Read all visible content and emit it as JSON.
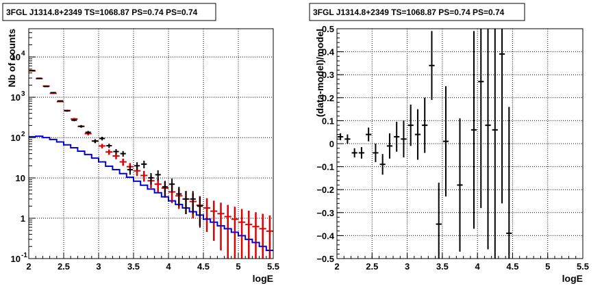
{
  "chart_data": [
    {
      "type": "histogram-errorbars",
      "title": "3FGL J1314.8+2349 TS=1068.87 PS=0.74 PS=0.74",
      "xlabel": "logE",
      "ylabel": "Nb of counts",
      "xlim": [
        2,
        5.5
      ],
      "ylim": [
        0.1,
        50000
      ],
      "yscale": "log",
      "grid": true,
      "x_ticks": [
        "2",
        "2.5",
        "3",
        "3.5",
        "4",
        "4.5",
        "5",
        "5.5"
      ],
      "y_ticks": [
        {
          "v": 0.1,
          "label": "10",
          "exp": "-1"
        },
        {
          "v": 1,
          "label": "1",
          "exp": ""
        },
        {
          "v": 10,
          "label": "10",
          "exp": ""
        },
        {
          "v": 100,
          "label": "10",
          "exp": "2"
        },
        {
          "v": 1000,
          "label": "10",
          "exp": "3"
        },
        {
          "v": 10000,
          "label": "10",
          "exp": "4"
        }
      ],
      "bin_width": 0.1,
      "series": [
        {
          "role": "total-model",
          "color": "#dd0000",
          "x": [
            2.05,
            2.15,
            2.25,
            2.35,
            2.45,
            2.55,
            2.65,
            2.75,
            2.85,
            2.95,
            3.05,
            3.15,
            3.25,
            3.35,
            3.45,
            3.55,
            3.65,
            3.75,
            3.85,
            3.95,
            4.05,
            4.15,
            4.25,
            4.35,
            4.45,
            4.55,
            4.65,
            4.75,
            4.85,
            4.95,
            5.05,
            5.15,
            5.25,
            5.35,
            5.45
          ],
          "values": [
            4500,
            2900,
            1900,
            1250,
            780,
            470,
            290,
            190,
            125,
            82,
            62,
            44,
            35,
            25,
            19,
            15,
            11.5,
            8.5,
            7,
            5.6,
            4.5,
            3.6,
            3,
            2.6,
            2.1,
            1.8,
            1.5,
            1.3,
            1.1,
            0.95,
            0.8,
            0.7,
            0.62,
            0.55,
            0.48
          ]
        },
        {
          "role": "source-model",
          "color": "#0000dd",
          "x": [
            2.05,
            2.15,
            2.25,
            2.35,
            2.45,
            2.55,
            2.65,
            2.75,
            2.85,
            2.95,
            3.05,
            3.15,
            3.25,
            3.35,
            3.45,
            3.55,
            3.65,
            3.75,
            3.85,
            3.95,
            4.05,
            4.15,
            4.25,
            4.35,
            4.45,
            4.55,
            4.65,
            4.75,
            4.85,
            4.95,
            5.05,
            5.15,
            5.25,
            5.35,
            5.45
          ],
          "values": [
            105,
            108,
            100,
            90,
            78,
            66,
            56,
            46,
            38,
            31,
            25,
            19.5,
            16,
            12.8,
            10.4,
            8.3,
            6.6,
            5.3,
            4.3,
            3.4,
            2.7,
            2.2,
            1.8,
            1.45,
            1.2,
            0.95,
            0.8,
            0.65,
            0.55,
            0.45,
            0.37,
            0.3,
            0.25,
            0.2,
            0.16
          ]
        },
        {
          "role": "data",
          "color": "#000000",
          "x": [
            2.05,
            2.15,
            2.25,
            2.35,
            2.45,
            2.55,
            2.65,
            2.75,
            2.85,
            2.95,
            3.05,
            3.15,
            3.25,
            3.35,
            3.45,
            3.55,
            3.65,
            3.75,
            3.85,
            3.95,
            4.05,
            4.15,
            4.25,
            4.35,
            4.45
          ],
          "values": [
            4600,
            2950,
            1850,
            1300,
            810,
            460,
            270,
            190,
            135,
            82,
            95,
            63,
            45,
            40,
            16,
            20,
            22,
            10,
            12,
            6,
            7,
            4,
            3,
            3,
            2
          ]
        }
      ]
    },
    {
      "type": "errorbars",
      "title": "3FGL J1314.8+2349 TS=1068.87 PS=0.74 PS=0.74",
      "xlabel": "logE",
      "ylabel": "(data-model)/model",
      "xlim": [
        2,
        5.5
      ],
      "ylim": [
        -0.5,
        0.5
      ],
      "grid": true,
      "x_ticks": [
        "2",
        "2.5",
        "3",
        "3.5",
        "4",
        "4.5",
        "5",
        "5.5"
      ],
      "y_ticks": [
        "−0.5",
        "−0.4",
        "−0.3",
        "−0.2",
        "−0.1",
        "0",
        "0.1",
        "0.2",
        "0.3",
        "0.4",
        "0.5"
      ],
      "y_tick_values": [
        -0.5,
        -0.4,
        -0.3,
        -0.2,
        -0.1,
        0,
        0.1,
        0.2,
        0.3,
        0.4,
        0.5
      ],
      "bin_width": 0.1,
      "points": {
        "x": [
          2.05,
          2.15,
          2.25,
          2.35,
          2.45,
          2.55,
          2.65,
          2.75,
          2.85,
          2.95,
          3.05,
          3.15,
          3.25,
          3.35,
          3.45,
          3.55,
          3.75,
          3.95,
          4.05,
          4.15,
          4.25,
          4.35,
          4.45
        ],
        "y": [
          0.03,
          0.02,
          -0.04,
          -0.04,
          0.04,
          -0.04,
          -0.09,
          -0.01,
          0.03,
          0.02,
          0.08,
          0.04,
          0.08,
          0.34,
          -0.35,
          0.01,
          -0.18,
          0.06,
          0.27,
          0.08,
          0.06,
          0.39,
          -0.39
        ],
        "err": [
          0.015,
          0.02,
          0.02,
          0.025,
          0.03,
          0.04,
          0.045,
          0.055,
          0.065,
          0.08,
          0.09,
          0.11,
          0.12,
          0.15,
          0.18,
          0.24,
          0.29,
          0.43,
          0.55,
          0.54,
          0.61,
          0.65,
          0.55
        ]
      }
    }
  ]
}
